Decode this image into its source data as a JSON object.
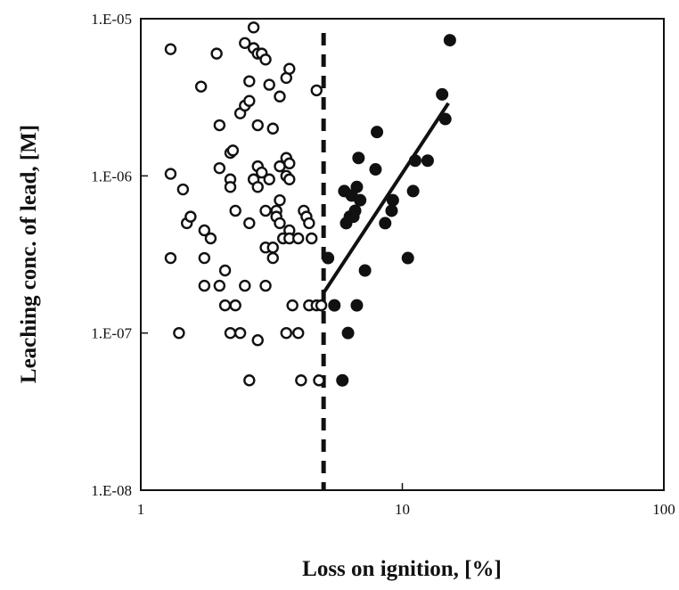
{
  "chart_data": {
    "type": "scatter",
    "xlabel": "Loss on ignition, [%]",
    "ylabel": "Leaching conc. of lead, [M]",
    "x_scale": "log",
    "y_scale": "log",
    "xlim": [
      1,
      100
    ],
    "ylim": [
      1e-08,
      1e-05
    ],
    "x_ticks": [
      1,
      10,
      100
    ],
    "x_tick_labels": [
      "1",
      "10",
      "100"
    ],
    "y_ticks": [
      1e-08,
      1e-07,
      1e-06,
      1e-05
    ],
    "y_tick_labels": [
      "1.E-08",
      "1.E-07",
      "1.E-06",
      "1.E-05"
    ],
    "grid": false,
    "legend": "none",
    "vertical_line": {
      "x": 5,
      "style": "dashed"
    },
    "series": [
      {
        "marker": "open-circle",
        "points": [
          [
            1.3,
            6.4e-06
          ],
          [
            1.3,
            1.03e-06
          ],
          [
            1.3,
            3e-07
          ],
          [
            1.4,
            1e-07
          ],
          [
            1.45,
            8.2e-07
          ],
          [
            1.5,
            5e-07
          ],
          [
            1.55,
            5.5e-07
          ],
          [
            1.7,
            3.7e-06
          ],
          [
            1.75,
            4.5e-07
          ],
          [
            1.75,
            3e-07
          ],
          [
            1.75,
            2e-07
          ],
          [
            1.85,
            4e-07
          ],
          [
            1.95,
            6e-06
          ],
          [
            2.0,
            2.1e-06
          ],
          [
            2.0,
            1.12e-06
          ],
          [
            2.0,
            2e-07
          ],
          [
            2.1,
            2.5e-07
          ],
          [
            2.1,
            1.5e-07
          ],
          [
            2.2,
            1.4e-06
          ],
          [
            2.2,
            9.5e-07
          ],
          [
            2.2,
            8.5e-07
          ],
          [
            2.2,
            1e-07
          ],
          [
            2.25,
            1.45e-06
          ],
          [
            2.3,
            6e-07
          ],
          [
            2.3,
            1.5e-07
          ],
          [
            2.4,
            2.5e-06
          ],
          [
            2.4,
            1e-07
          ],
          [
            2.5,
            7e-06
          ],
          [
            2.5,
            2.8e-06
          ],
          [
            2.5,
            2e-07
          ],
          [
            2.6,
            4e-06
          ],
          [
            2.6,
            3e-06
          ],
          [
            2.6,
            5e-07
          ],
          [
            2.6,
            5e-08
          ],
          [
            2.7,
            8.8e-06
          ],
          [
            2.7,
            6.5e-06
          ],
          [
            2.7,
            9.5e-07
          ],
          [
            2.8,
            6e-06
          ],
          [
            2.8,
            2.1e-06
          ],
          [
            2.8,
            1.15e-06
          ],
          [
            2.8,
            8.5e-07
          ],
          [
            2.8,
            9e-08
          ],
          [
            2.9,
            6e-06
          ],
          [
            2.9,
            1.05e-06
          ],
          [
            3.0,
            5.5e-06
          ],
          [
            3.0,
            6e-07
          ],
          [
            3.0,
            3.5e-07
          ],
          [
            3.0,
            2e-07
          ],
          [
            3.1,
            3.8e-06
          ],
          [
            3.1,
            9.5e-07
          ],
          [
            3.2,
            2e-06
          ],
          [
            3.2,
            3.5e-07
          ],
          [
            3.2,
            3e-07
          ],
          [
            3.3,
            6e-07
          ],
          [
            3.3,
            5.5e-07
          ],
          [
            3.4,
            3.2e-06
          ],
          [
            3.4,
            1.15e-06
          ],
          [
            3.4,
            7e-07
          ],
          [
            3.4,
            5e-07
          ],
          [
            3.5,
            4e-07
          ],
          [
            3.6,
            4.2e-06
          ],
          [
            3.6,
            1.3e-06
          ],
          [
            3.6,
            1e-06
          ],
          [
            3.6,
            1e-07
          ],
          [
            3.7,
            4.8e-06
          ],
          [
            3.7,
            1.2e-06
          ],
          [
            3.7,
            9.5e-07
          ],
          [
            3.7,
            4.5e-07
          ],
          [
            3.7,
            4e-07
          ],
          [
            3.8,
            1.5e-07
          ],
          [
            4.0,
            4e-07
          ],
          [
            4.0,
            1e-07
          ],
          [
            4.1,
            5e-08
          ],
          [
            4.2,
            6e-07
          ],
          [
            4.3,
            5.5e-07
          ],
          [
            4.4,
            5e-07
          ],
          [
            4.4,
            1.5e-07
          ],
          [
            4.5,
            4e-07
          ],
          [
            4.7,
            3.5e-06
          ],
          [
            4.7,
            1.5e-07
          ],
          [
            4.8,
            5e-08
          ],
          [
            4.9,
            1.5e-07
          ]
        ]
      },
      {
        "marker": "filled-circle",
        "points": [
          [
            5.2,
            3e-07
          ],
          [
            5.5,
            1.5e-07
          ],
          [
            5.9,
            5e-08
          ],
          [
            6.0,
            8e-07
          ],
          [
            6.1,
            5e-07
          ],
          [
            6.2,
            1e-07
          ],
          [
            6.3,
            5.5e-07
          ],
          [
            6.4,
            7.5e-07
          ],
          [
            6.5,
            5.5e-07
          ],
          [
            6.6,
            6e-07
          ],
          [
            6.7,
            8.5e-07
          ],
          [
            6.7,
            1.5e-07
          ],
          [
            6.8,
            1.3e-06
          ],
          [
            6.9,
            7e-07
          ],
          [
            7.2,
            2.5e-07
          ],
          [
            7.9,
            1.1e-06
          ],
          [
            8.0,
            1.9e-06
          ],
          [
            8.6,
            5e-07
          ],
          [
            9.1,
            6e-07
          ],
          [
            9.2,
            7e-07
          ],
          [
            10.5,
            3e-07
          ],
          [
            11.0,
            8e-07
          ],
          [
            11.2,
            1.25e-06
          ],
          [
            12.5,
            1.25e-06
          ],
          [
            14.2,
            3.3e-06
          ],
          [
            14.6,
            2.3e-06
          ],
          [
            15.2,
            7.3e-06
          ]
        ]
      }
    ],
    "trend_line": {
      "style": "solid",
      "from": [
        5,
        1.8e-07
      ],
      "to": [
        15,
        2.9e-06
      ]
    }
  }
}
